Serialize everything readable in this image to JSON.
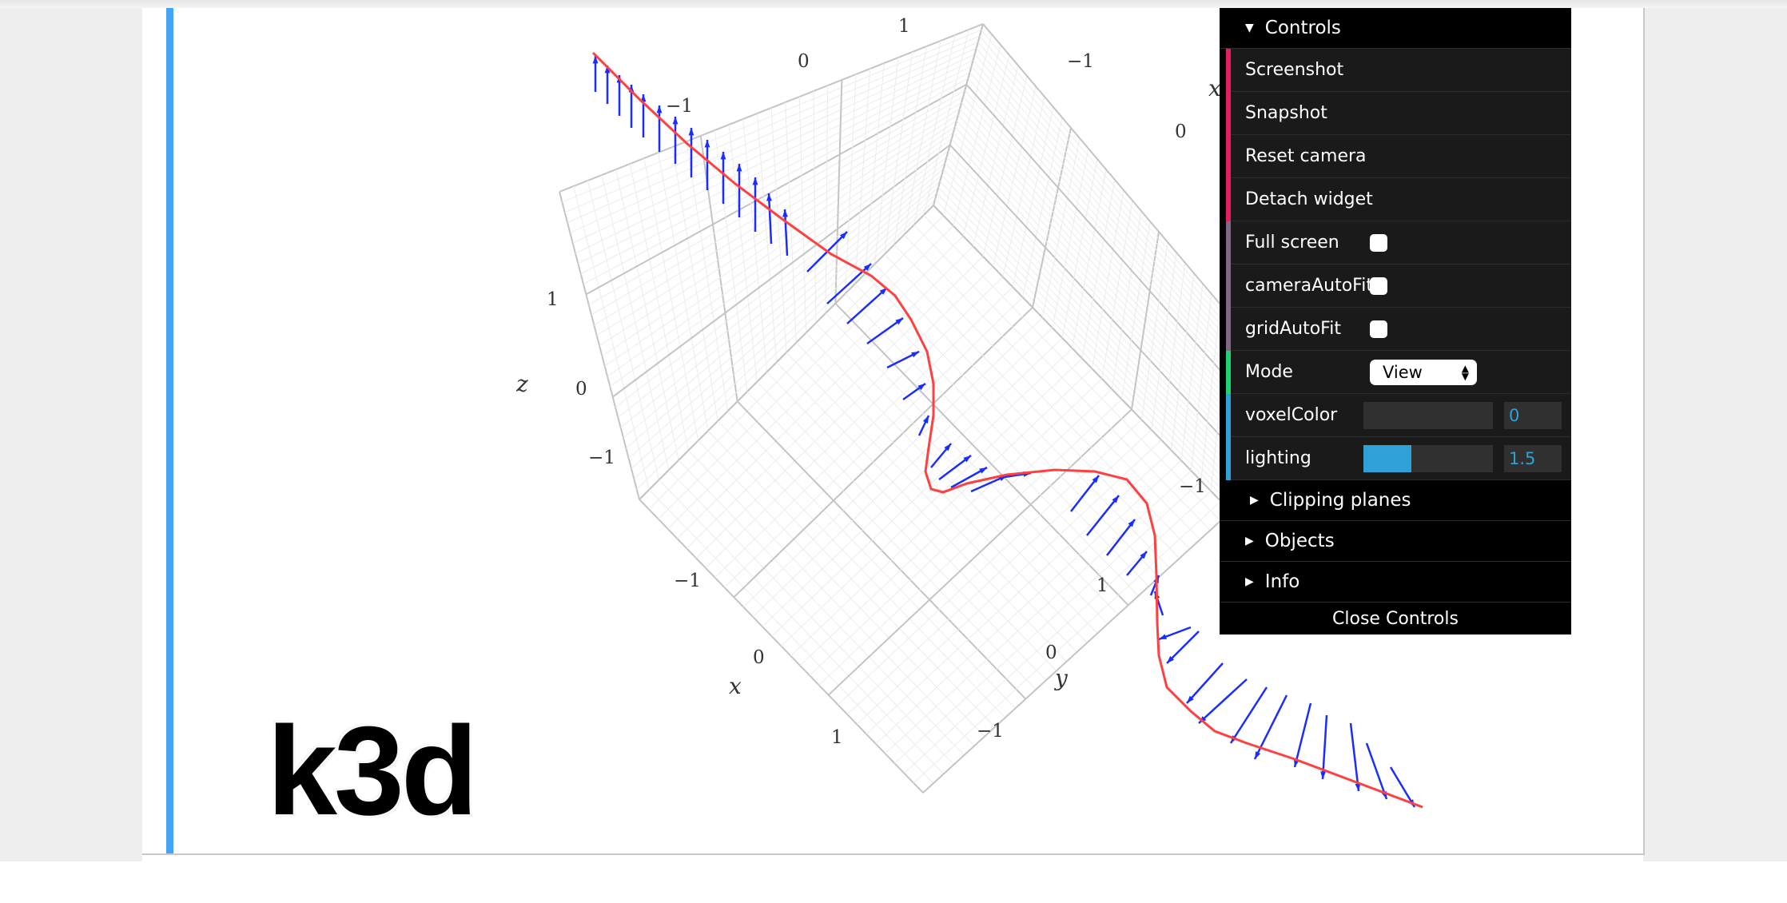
{
  "viewport": {
    "axis_labels": {
      "x_left": [
        "−1",
        "0",
        "1"
      ],
      "y_bottom": [
        "0",
        "−1"
      ],
      "y_right_edge": "1",
      "z_left": [
        "1",
        "0",
        "−1"
      ],
      "top_edge": [
        "1",
        "0",
        "−1"
      ],
      "top_left_edge": "−1",
      "right_edge": [
        "0",
        "−1"
      ],
      "titles": {
        "x_left": "x",
        "y": "y",
        "z": "z",
        "x_right": "x"
      }
    },
    "colors": {
      "curve": "#ff4040",
      "vectors": "#1a2dff",
      "grid": "#cfcfcf"
    }
  },
  "logo": {
    "text": "k3d"
  },
  "controls": {
    "title": "Controls",
    "buttons": [
      {
        "label": "Screenshot",
        "color": "#e61d5f"
      },
      {
        "label": "Snapshot",
        "color": "#e61d5f"
      },
      {
        "label": "Reset camera",
        "color": "#e61d5f"
      },
      {
        "label": "Detach widget",
        "color": "#e61d5f"
      }
    ],
    "checkboxes": [
      {
        "label": "Full screen",
        "checked": false,
        "color": "#806787"
      },
      {
        "label": "cameraAutoFit",
        "checked": false,
        "color": "#806787"
      },
      {
        "label": "gridAutoFit",
        "checked": false,
        "color": "#806787"
      }
    ],
    "mode": {
      "label": "Mode",
      "value": "View",
      "color": "#1ed36f"
    },
    "voxelColor": {
      "label": "voxelColor",
      "value": "0",
      "fraction": 0.0,
      "color": "#2fa1d6"
    },
    "lighting": {
      "label": "lighting",
      "value": "1.5",
      "fraction": 0.37,
      "color": "#2fa1d6"
    },
    "folders": {
      "clipping": "Clipping planes",
      "objects": "Objects",
      "info": "Info"
    },
    "close": "Close Controls"
  }
}
